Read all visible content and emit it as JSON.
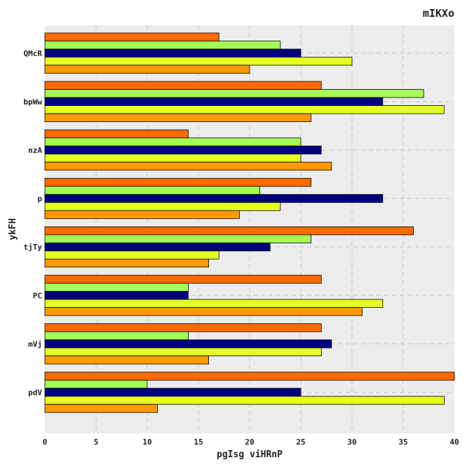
{
  "chart_data": {
    "type": "bar",
    "orientation": "horizontal",
    "title": "mIKXo",
    "xlabel": "pgIsg viHRnP",
    "ylabel": "ykFH",
    "categories": [
      "QMcR",
      "bpWw",
      "nzA",
      "p",
      "tjTy",
      "PC",
      "mVj",
      "pdV"
    ],
    "xlim": [
      0,
      40
    ],
    "xticks": [
      0,
      5,
      10,
      15,
      20,
      25,
      30,
      35,
      40
    ],
    "grid": true,
    "legend": false,
    "series": [
      {
        "color": "#ff6a00",
        "values": [
          17,
          27,
          14,
          26,
          36,
          27,
          27,
          40
        ]
      },
      {
        "color": "#a3ff55",
        "values": [
          23,
          37,
          25,
          21,
          26,
          14,
          14,
          10
        ]
      },
      {
        "color": "#00007f",
        "values": [
          25,
          33,
          27,
          33,
          22,
          14,
          28,
          25
        ]
      },
      {
        "color": "#e6ff22",
        "values": [
          30,
          39,
          25,
          23,
          17,
          33,
          27,
          39
        ]
      },
      {
        "color": "#ff9a00",
        "values": [
          20,
          26,
          28,
          19,
          16,
          31,
          16,
          11
        ]
      }
    ],
    "plot_background": "#ececec"
  }
}
